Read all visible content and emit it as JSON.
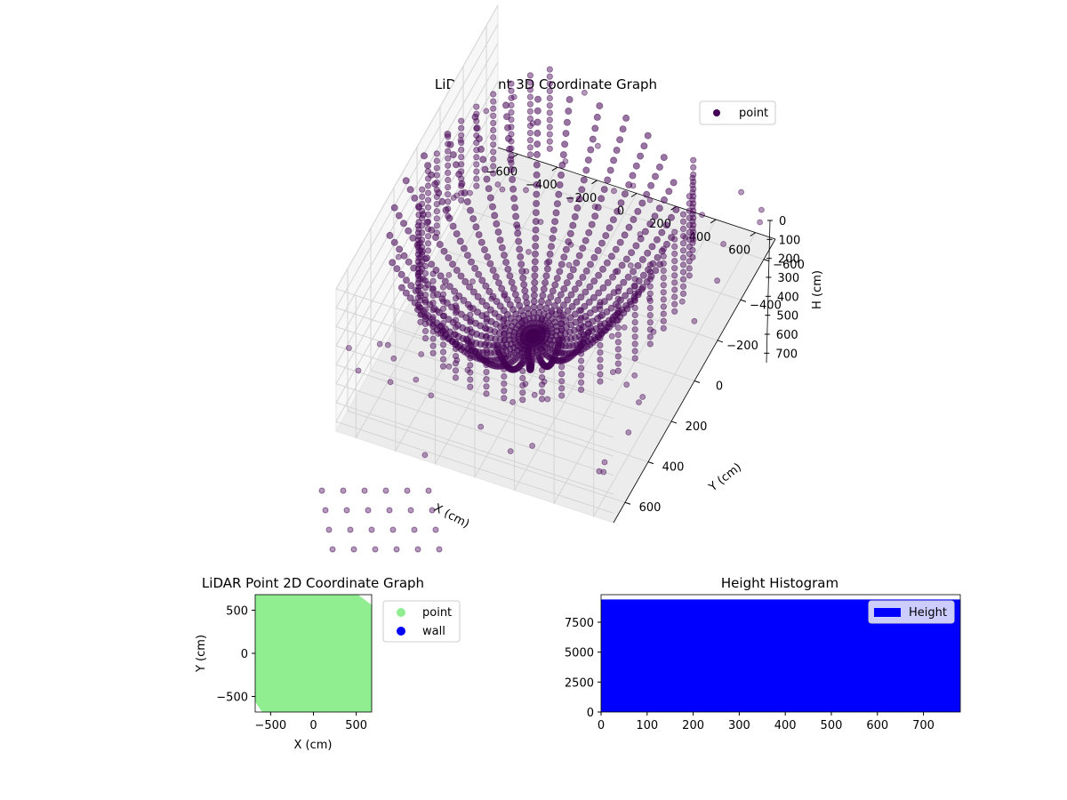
{
  "chart_data": [
    {
      "type": "scatter",
      "projection": "3d",
      "title": "LiDAR Point 3D Coordinate Graph",
      "xlabel": "X (cm)",
      "ylabel": "Y (cm)",
      "zlabel": "H (cm)",
      "xlim": [
        -700,
        700
      ],
      "ylim": [
        -700,
        700
      ],
      "zlim": [
        0,
        750
      ],
      "z_inverted": true,
      "xticks": [
        -600,
        -400,
        -200,
        0,
        200,
        400,
        600
      ],
      "yticks": [
        -600,
        -400,
        -200,
        0,
        200,
        400,
        600
      ],
      "zticks": [
        0,
        100,
        200,
        300,
        400,
        500,
        600,
        700
      ],
      "series": [
        {
          "name": "point",
          "color": "#440154",
          "description_groups": [
            {
              "kind": "wall_ring",
              "radius": 600,
              "h": [
                0,
                440
              ]
            },
            {
              "kind": "arc_bundle",
              "count": 14,
              "rim_h": 120,
              "depth_h": 720
            },
            {
              "kind": "drop_lines",
              "x": [
                -650,
                650
              ],
              "h": [
                700,
                760
              ]
            }
          ]
        }
      ],
      "legend": {
        "position": "upper-right",
        "entries": [
          "point"
        ]
      },
      "grid": true
    },
    {
      "type": "scatter",
      "title": "LiDAR Point 2D Coordinate Graph",
      "xlabel": "X (cm)",
      "ylabel": "Y (cm)",
      "xlim": [
        -680,
        680
      ],
      "ylim": [
        -680,
        680
      ],
      "xticks": [
        -500,
        0,
        500
      ],
      "yticks": [
        -500,
        0,
        500
      ],
      "series": [
        {
          "name": "point",
          "color": "#90ee90",
          "extent": {
            "x": [
              -680,
              680
            ],
            "y": [
              -680,
              680
            ]
          }
        },
        {
          "name": "wall",
          "color": "#0000ff",
          "values": []
        }
      ],
      "legend": {
        "position": "outside-right",
        "entries": [
          "point",
          "wall"
        ]
      }
    },
    {
      "type": "bar",
      "title": "Height Histogram",
      "xlabel": "",
      "ylabel": "",
      "xlim": [
        0,
        780
      ],
      "ylim": [
        0,
        9800
      ],
      "xticks": [
        0,
        100,
        200,
        300,
        400,
        500,
        600,
        700
      ],
      "yticks": [
        0,
        2500,
        5000,
        7500
      ],
      "series": [
        {
          "name": "Height",
          "color": "#0000ff",
          "range": [
            0,
            780
          ],
          "count": 9400
        }
      ],
      "legend": {
        "position": "upper-right",
        "entries": [
          "Height"
        ]
      }
    }
  ]
}
